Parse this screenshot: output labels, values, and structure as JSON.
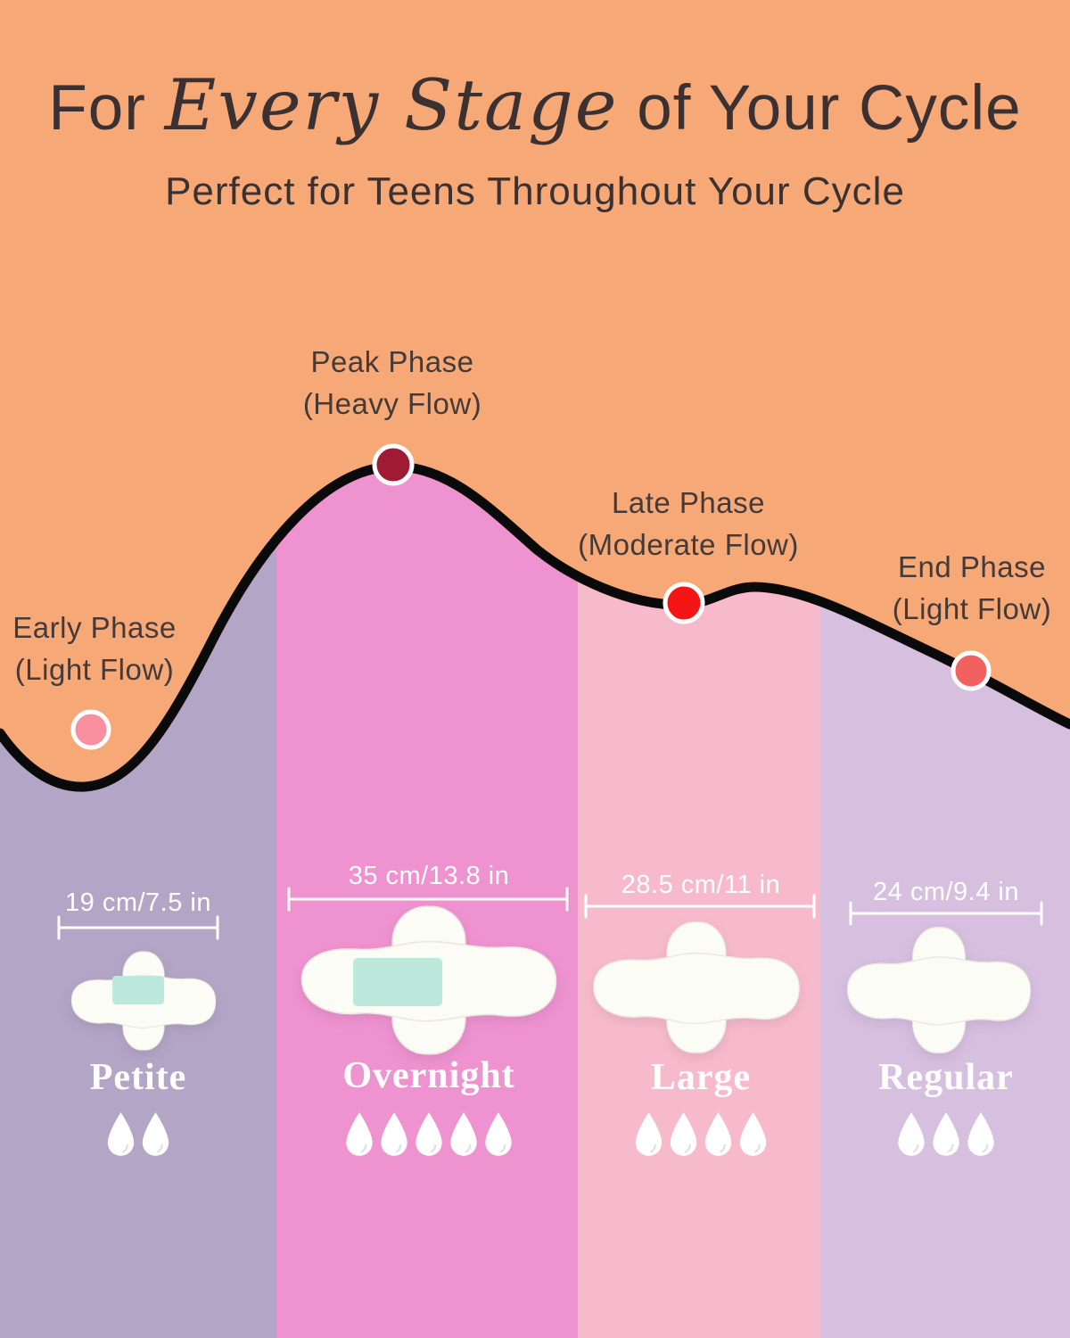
{
  "header": {
    "title_prefix": "For",
    "title_script": "Every Stage",
    "title_suffix": "of Your Cycle",
    "subtitle": "Perfect for Teens Throughout Your Cycle"
  },
  "curve": {
    "phases": [
      {
        "name": "Early Phase",
        "flow": "(Light Flow)",
        "dot_color": "#F78F9F"
      },
      {
        "name": "Peak Phase",
        "flow": "(Heavy Flow)",
        "dot_color": "#9E1B33"
      },
      {
        "name": "Late Phase",
        "flow": "(Moderate Flow)",
        "dot_color": "#F51515"
      },
      {
        "name": "End Phase",
        "flow": "(Light Flow)",
        "dot_color": "#F2605F"
      }
    ]
  },
  "products": [
    {
      "name": "Petite",
      "size": "19 cm/7.5 in",
      "droplets": 2,
      "column_color": "#B3A5C6"
    },
    {
      "name": "Overnight",
      "size": "35 cm/13.8 in",
      "droplets": 5,
      "column_color": "#EE92D0"
    },
    {
      "name": "Large",
      "size": "28.5 cm/11 in",
      "droplets": 4,
      "column_color": "#F7BACD"
    },
    {
      "name": "Regular",
      "size": "24 cm/9.4 in",
      "droplets": 3,
      "column_color": "#D7BFE0"
    }
  ],
  "colors": {
    "background": "#F6A877",
    "curve_line": "#0B0A0A",
    "text_dark": "#3B3132",
    "pad_white": "#FCFCF6",
    "pad_patch_teal": "#BDE9DC",
    "measure_white": "#FFFFFF"
  }
}
